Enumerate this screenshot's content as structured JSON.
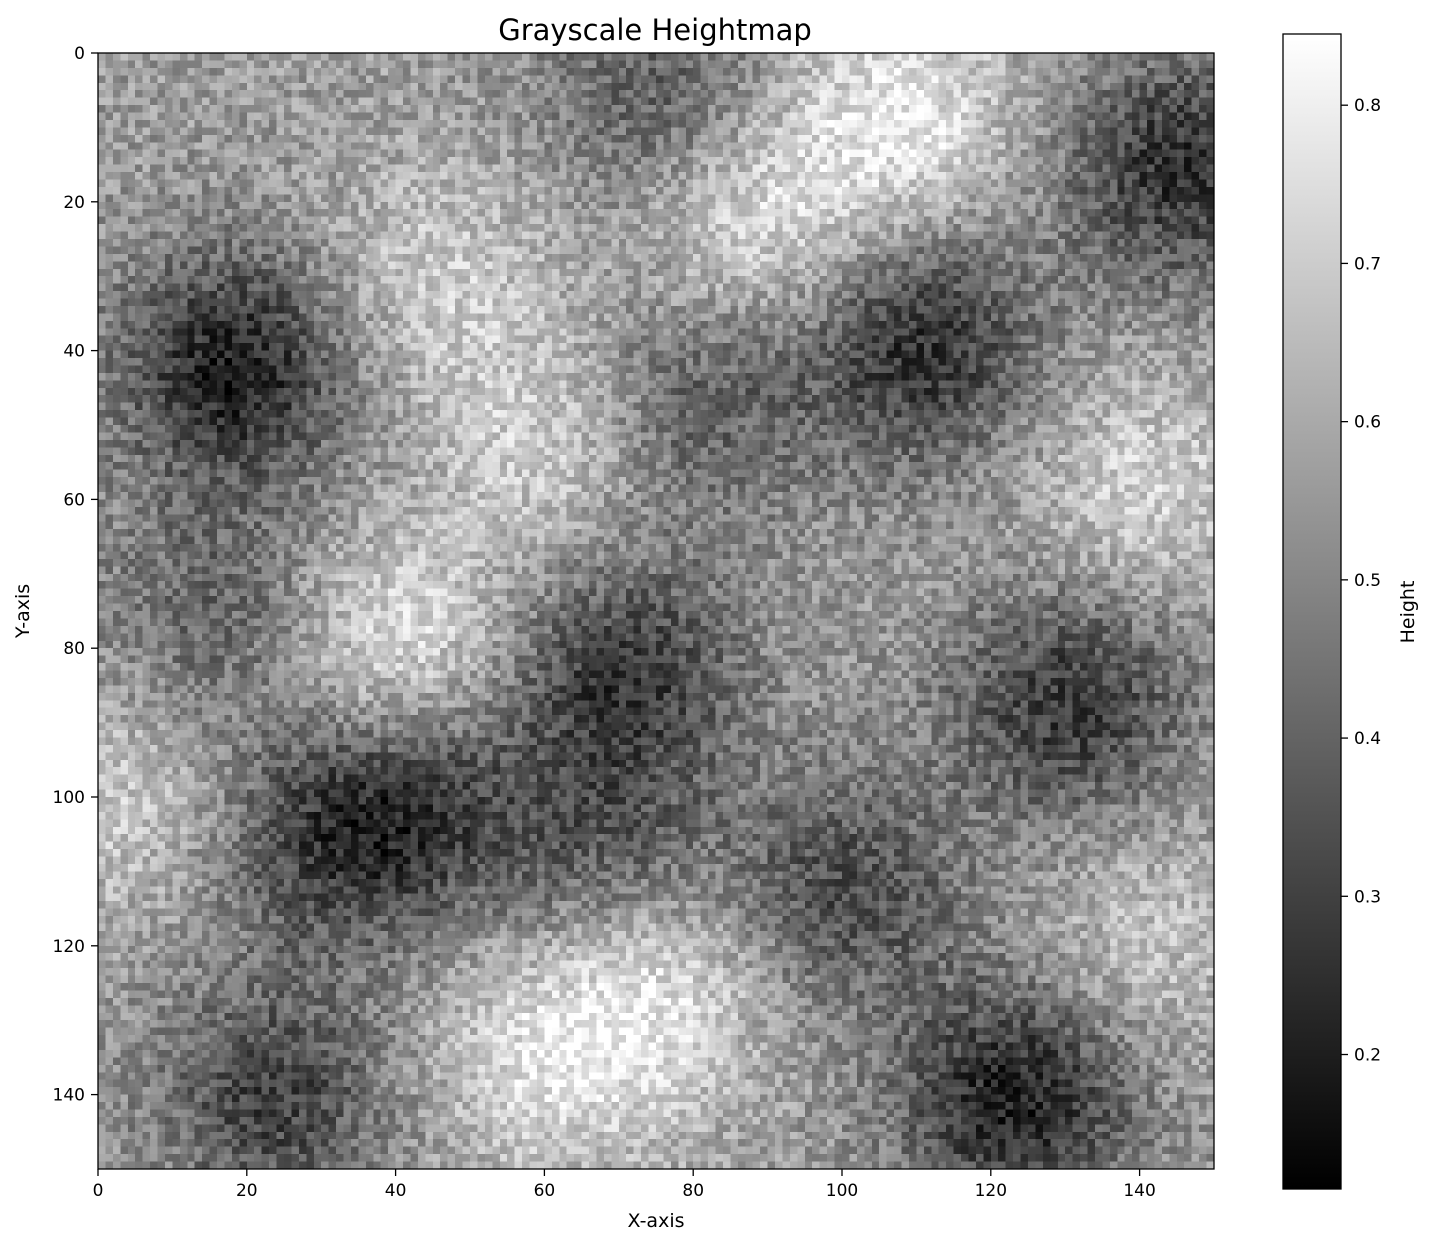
{
  "chart_data": {
    "type": "heatmap",
    "title": "Grayscale Heightmap",
    "xlabel": "X-axis",
    "ylabel": "Y-axis",
    "colormap": "gray",
    "grid": false,
    "xlim": [
      0,
      150
    ],
    "ylim": [
      150,
      0
    ],
    "x_ticks": [
      0,
      20,
      40,
      60,
      80,
      100,
      120,
      140
    ],
    "y_ticks": [
      0,
      20,
      40,
      60,
      80,
      100,
      120,
      140
    ],
    "grid_size": [
      150,
      150
    ],
    "colorbar": {
      "label": "Height",
      "min": 0.115,
      "max": 0.845,
      "ticks": [
        0.2,
        0.3,
        0.4,
        0.5,
        0.6,
        0.7,
        0.8
      ]
    },
    "low_regions": [
      {
        "x": 18,
        "y": 42,
        "value": 0.2
      },
      {
        "x": 110,
        "y": 39,
        "value": 0.25
      },
      {
        "x": 145,
        "y": 15,
        "value": 0.25
      },
      {
        "x": 70,
        "y": 83,
        "value": 0.27
      },
      {
        "x": 130,
        "y": 87,
        "value": 0.27
      },
      {
        "x": 123,
        "y": 140,
        "value": 0.2
      },
      {
        "x": 23,
        "y": 140,
        "value": 0.3
      },
      {
        "x": 30,
        "y": 105,
        "value": 0.33
      },
      {
        "x": 43,
        "y": 100,
        "value": 0.33
      },
      {
        "x": 100,
        "y": 112,
        "value": 0.33
      },
      {
        "x": 80,
        "y": 47,
        "value": 0.37
      },
      {
        "x": 75,
        "y": 5,
        "value": 0.38
      },
      {
        "x": 68,
        "y": 108,
        "value": 0.38
      },
      {
        "x": 15,
        "y": 75,
        "value": 0.4
      }
    ],
    "high_regions": [
      {
        "x": 108,
        "y": 8,
        "value": 0.78
      },
      {
        "x": 88,
        "y": 22,
        "value": 0.75
      },
      {
        "x": 40,
        "y": 80,
        "value": 0.78
      },
      {
        "x": 60,
        "y": 52,
        "value": 0.72
      },
      {
        "x": 75,
        "y": 125,
        "value": 0.76
      },
      {
        "x": 60,
        "y": 135,
        "value": 0.75
      },
      {
        "x": 140,
        "y": 58,
        "value": 0.72
      },
      {
        "x": 45,
        "y": 30,
        "value": 0.7
      },
      {
        "x": 2,
        "y": 100,
        "value": 0.7
      },
      {
        "x": 140,
        "y": 120,
        "value": 0.68
      }
    ]
  }
}
